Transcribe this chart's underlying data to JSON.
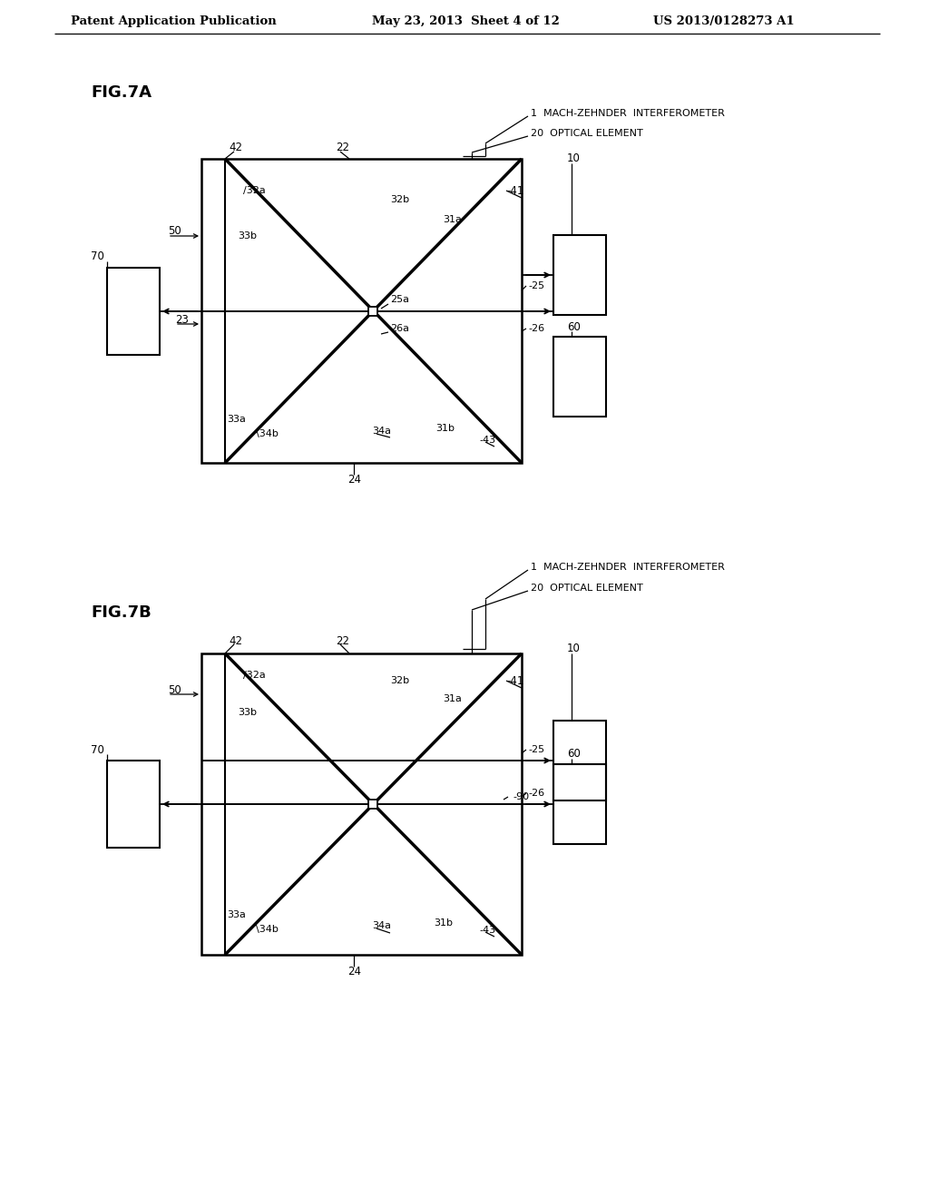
{
  "bg_color": "#ffffff",
  "header_left": "Patent Application Publication",
  "header_center": "May 23, 2013  Sheet 4 of 12",
  "header_right": "US 2013/0128273 A1",
  "fig7a_label": "FIG.7A",
  "fig7b_label": "FIG.7B"
}
